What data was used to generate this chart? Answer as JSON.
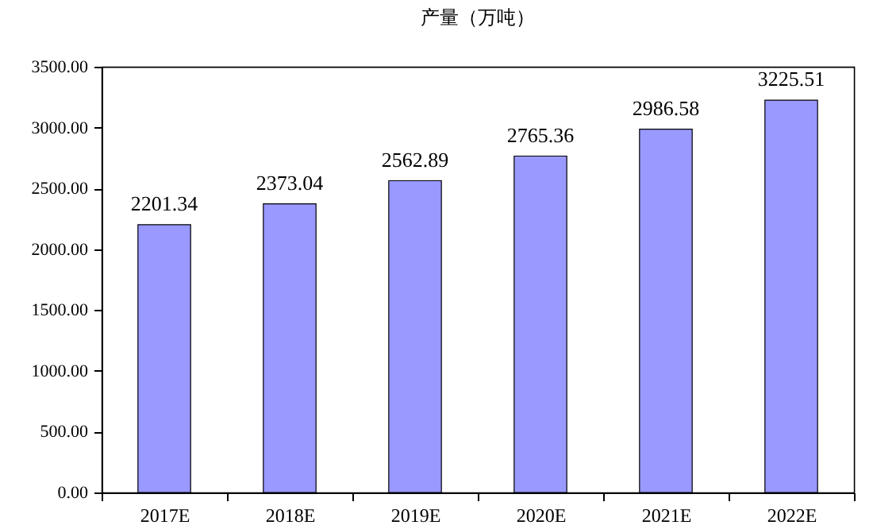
{
  "chart_data": {
    "type": "bar",
    "title": "产量（万吨）",
    "categories": [
      "2017E",
      "2018E",
      "2019E",
      "2020E",
      "2021E",
      "2022E"
    ],
    "values": [
      2201.34,
      2373.04,
      2562.89,
      2765.36,
      2986.58,
      3225.51
    ],
    "color": "#9999ff",
    "ylim": [
      0,
      3500
    ],
    "yticks": [
      {
        "value": 0,
        "label": "0.00"
      },
      {
        "value": 500,
        "label": "500.00"
      },
      {
        "value": 1000,
        "label": "1000.00"
      },
      {
        "value": 1500,
        "label": "1500.00"
      },
      {
        "value": 2000,
        "label": "2000.00"
      },
      {
        "value": 2500,
        "label": "2500.00"
      },
      {
        "value": 3000,
        "label": "3000.00"
      },
      {
        "value": 3500,
        "label": "3500.00"
      }
    ],
    "data_labels": true,
    "grid": false
  }
}
